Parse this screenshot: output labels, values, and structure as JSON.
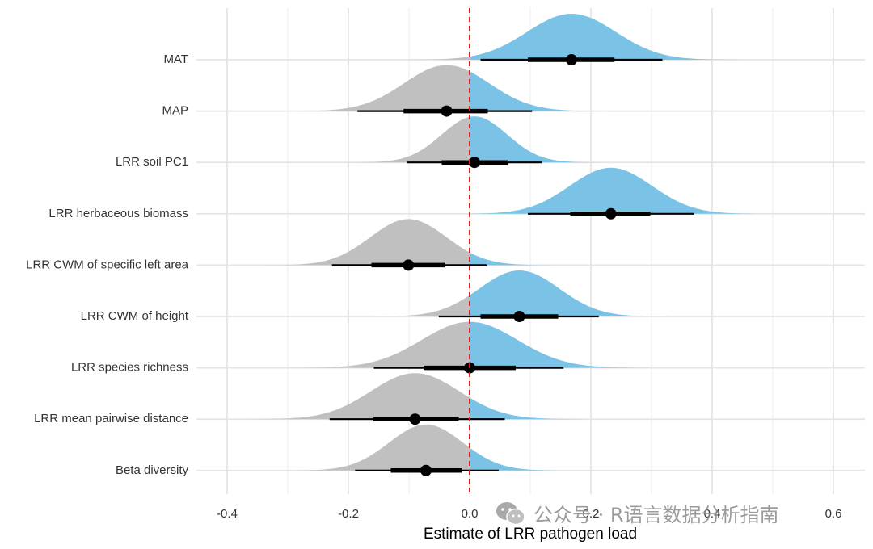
{
  "chart_data": {
    "type": "halfeye",
    "xlabel": "Estimate of LRR pathogen load",
    "xlim": [
      -0.4,
      0.6
    ],
    "xticks": [
      -0.4,
      -0.2,
      0.0,
      0.2,
      0.4,
      0.6
    ],
    "xtick_labels": [
      "-0.4",
      "-0.2",
      "0.0",
      "0.2",
      "0.4",
      "0.6"
    ],
    "reference_line": {
      "x": 0,
      "color": "#e8191b",
      "style": "dashed"
    },
    "colors": {
      "positive": "#7ac3e6",
      "negative": "#c0c0c0",
      "interval": "#000000",
      "grid": "#e5e5e5"
    },
    "grid": true,
    "series": [
      {
        "label": "MAT",
        "point": 0.168,
        "ci66": [
          0.096,
          0.239
        ],
        "ci95": [
          0.018,
          0.318
        ],
        "sd": 0.073
      },
      {
        "label": "MAP",
        "point": -0.038,
        "ci66": [
          -0.109,
          0.03
        ],
        "ci95": [
          -0.185,
          0.103
        ],
        "sd": 0.07
      },
      {
        "label": "LRR soil PC1",
        "point": 0.008,
        "ci66": [
          -0.046,
          0.063
        ],
        "ci95": [
          -0.103,
          0.119
        ],
        "sd": 0.054
      },
      {
        "label": "LRR herbaceous biomass",
        "point": 0.233,
        "ci66": [
          0.166,
          0.298
        ],
        "ci95": [
          0.096,
          0.37
        ],
        "sd": 0.068
      },
      {
        "label": "LRR CWM of specific left area",
        "point": -0.101,
        "ci66": [
          -0.162,
          -0.04
        ],
        "ci95": [
          -0.227,
          0.028
        ],
        "sd": 0.063
      },
      {
        "label": "LRR CWM of height",
        "point": 0.082,
        "ci66": [
          0.018,
          0.146
        ],
        "ci95": [
          -0.051,
          0.213
        ],
        "sd": 0.066
      },
      {
        "label": "LRR species richness",
        "point": 0.0,
        "ci66": [
          -0.076,
          0.076
        ],
        "ci95": [
          -0.158,
          0.155
        ],
        "sd": 0.079
      },
      {
        "label": "LRR mean pairwise distance",
        "point": -0.09,
        "ci66": [
          -0.159,
          -0.018
        ],
        "ci95": [
          -0.231,
          0.058
        ],
        "sd": 0.073
      },
      {
        "label": "Beta diversity",
        "point": -0.072,
        "ci66": [
          -0.13,
          -0.013
        ],
        "ci95": [
          -0.189,
          0.048
        ],
        "sd": 0.061
      }
    ]
  },
  "watermark": {
    "text": "公众号 · R语言数据分析指南",
    "icon": "wechat-icon"
  }
}
